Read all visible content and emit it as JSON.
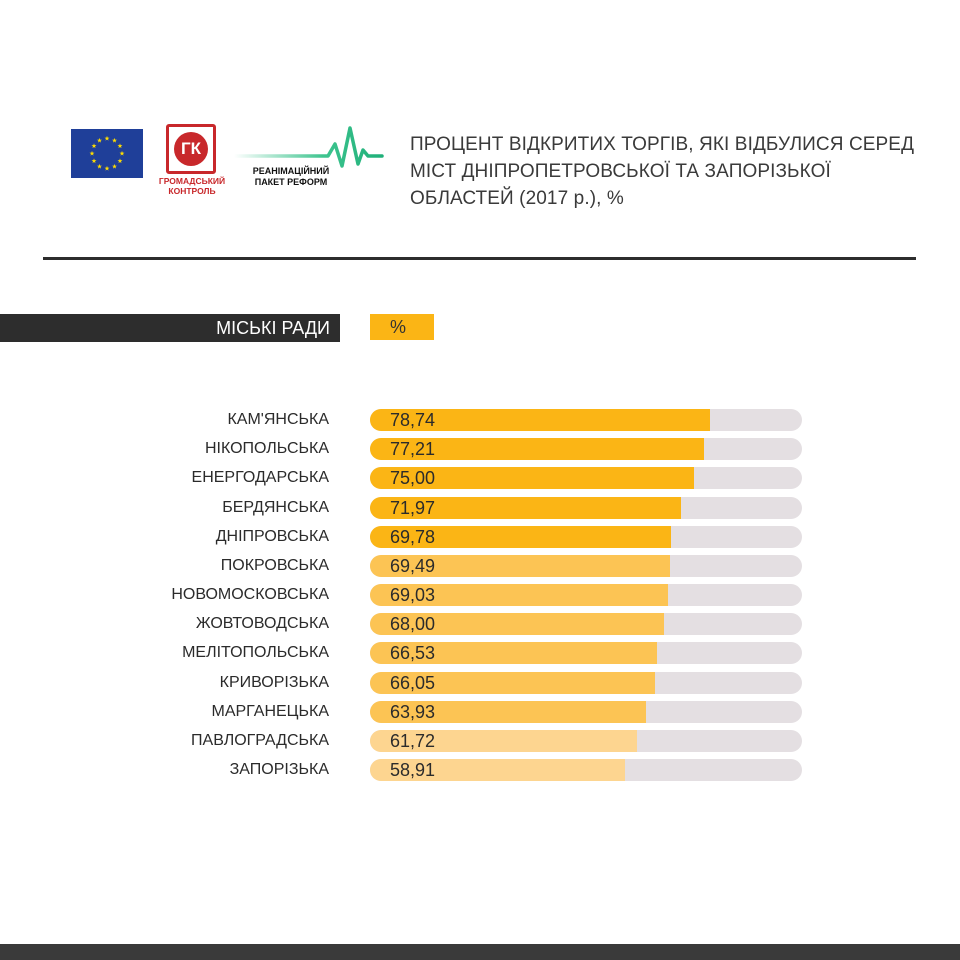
{
  "header": {
    "title": "ПРОЦЕНТ ВІДКРИТИХ ТОРГІВ, ЯКІ ВІДБУЛИСЯ СЕРЕД МІСТ ДНІПРОПЕТРОВСЬКОЇ ТА ЗАПОРІЗЬКОЇ ОБЛАСТЕЙ (2017 р.), %",
    "logos": {
      "eu_flag": "eu-flag-icon",
      "gk_mark": "ГК",
      "gk_caption": "ГРОМАДСЬКИЙ КОНТРОЛЬ",
      "rpr_caption": "РЕАНІМАЦІЙНИЙ ПАКЕТ РЕФОРМ"
    }
  },
  "legend": {
    "category_label": "МІСЬКІ РАДИ",
    "value_label": "%"
  },
  "colors": {
    "bar_strong": "#fbb515",
    "bar_medium": "#fcc454",
    "bar_light": "#fdd590",
    "track": "#e4dfe2",
    "dark": "#2d2d2d"
  },
  "chart_data": {
    "type": "bar",
    "orientation": "horizontal",
    "title": "ПРОЦЕНТ ВІДКРИТИХ ТОРГІВ, ЯКІ ВІДБУЛИСЯ СЕРЕД МІСТ ДНІПРОПЕТРОВСЬКОЇ ТА ЗАПОРІЗЬКОЇ ОБЛАСТЕЙ (2017 р.), %",
    "xlim": [
      0,
      100
    ],
    "grid": false,
    "categories": [
      "КАМ'ЯНСЬКА",
      "НІКОПОЛЬСЬКА",
      "ЕНЕРГОДАРСЬКА",
      "БЕРДЯНСЬКА",
      "ДНІПРОВСЬКА",
      "ПОКРОВСЬКА",
      "НОВОМОСКОВСЬКА",
      "ЖОВТОВОДСЬКА",
      "МЕЛІТОПОЛЬСЬКА",
      "КРИВОРІЗЬКА",
      "МАРГАНЕЦЬКА",
      "ПАВЛОГРАДСЬКА",
      "ЗАПОРІЗЬКА"
    ],
    "values": [
      78.74,
      77.21,
      75.0,
      71.97,
      69.78,
      69.49,
      69.03,
      68.0,
      66.53,
      66.05,
      63.93,
      61.72,
      58.91
    ],
    "value_labels": [
      "78,74",
      "77,21",
      "75,00",
      "71,97",
      "69,78",
      "69,49",
      "69,03",
      "68,00",
      "66,53",
      "66,05",
      "63,93",
      "61,72",
      "58,91"
    ]
  }
}
